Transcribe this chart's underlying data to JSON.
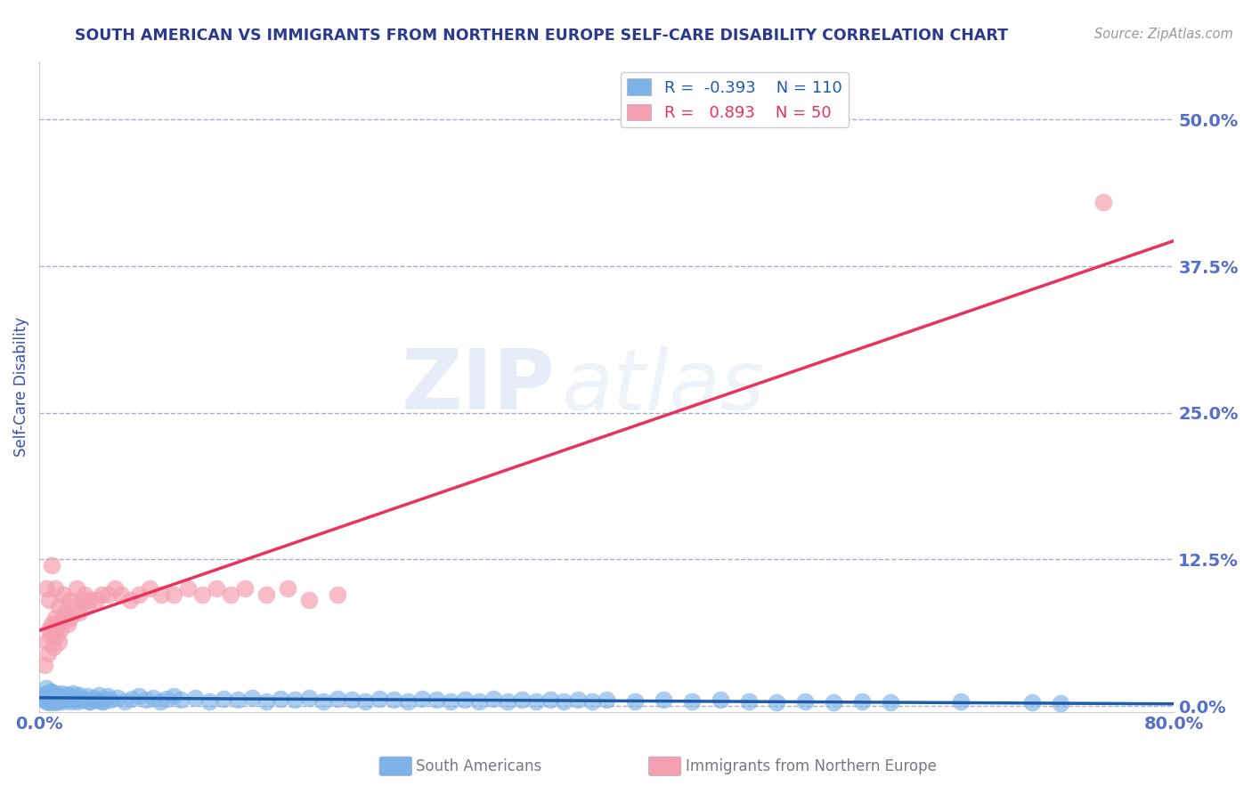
{
  "title": "SOUTH AMERICAN VS IMMIGRANTS FROM NORTHERN EUROPE SELF-CARE DISABILITY CORRELATION CHART",
  "source": "Source: ZipAtlas.com",
  "ylabel": "Self-Care Disability",
  "xlim": [
    0.0,
    0.8
  ],
  "ylim": [
    -0.005,
    0.55
  ],
  "yticks": [
    0.0,
    0.125,
    0.25,
    0.375,
    0.5
  ],
  "blue_R": -0.393,
  "blue_N": 110,
  "pink_R": 0.893,
  "pink_N": 50,
  "blue_color": "#7EB3E8",
  "pink_color": "#F4A0B0",
  "blue_line_color": "#1E5BA8",
  "pink_line_color": "#E8345A",
  "background_color": "#FFFFFF",
  "grid_color": "#AAAACC",
  "title_color": "#2B3A8C",
  "axis_label_color": "#3A4FAA",
  "tick_color": "#5570C8",
  "watermark_zip": "ZIP",
  "watermark_atlas": "atlas",
  "legend_label_blue": "South Americans",
  "legend_label_pink": "Immigrants from Northern Europe",
  "blue_x": [
    0.003,
    0.004,
    0.005,
    0.005,
    0.006,
    0.006,
    0.007,
    0.007,
    0.008,
    0.008,
    0.009,
    0.009,
    0.01,
    0.01,
    0.011,
    0.011,
    0.012,
    0.012,
    0.013,
    0.013,
    0.014,
    0.015,
    0.015,
    0.016,
    0.017,
    0.018,
    0.019,
    0.02,
    0.021,
    0.022,
    0.023,
    0.024,
    0.025,
    0.026,
    0.027,
    0.028,
    0.03,
    0.032,
    0.034,
    0.036,
    0.038,
    0.04,
    0.042,
    0.044,
    0.046,
    0.048,
    0.05,
    0.055,
    0.06,
    0.065,
    0.07,
    0.075,
    0.08,
    0.085,
    0.09,
    0.095,
    0.1,
    0.11,
    0.12,
    0.13,
    0.14,
    0.15,
    0.16,
    0.17,
    0.18,
    0.19,
    0.2,
    0.21,
    0.22,
    0.23,
    0.24,
    0.25,
    0.26,
    0.27,
    0.28,
    0.29,
    0.3,
    0.31,
    0.32,
    0.33,
    0.34,
    0.35,
    0.36,
    0.37,
    0.38,
    0.39,
    0.4,
    0.42,
    0.44,
    0.46,
    0.48,
    0.5,
    0.52,
    0.54,
    0.56,
    0.58,
    0.6,
    0.65,
    0.7,
    0.72,
    0.005,
    0.008,
    0.01,
    0.015,
    0.02,
    0.025,
    0.03,
    0.035,
    0.04,
    0.045
  ],
  "blue_y": [
    0.006,
    0.009,
    0.004,
    0.011,
    0.005,
    0.008,
    0.003,
    0.01,
    0.006,
    0.012,
    0.004,
    0.009,
    0.005,
    0.011,
    0.003,
    0.008,
    0.006,
    0.01,
    0.004,
    0.009,
    0.005,
    0.007,
    0.011,
    0.004,
    0.008,
    0.006,
    0.01,
    0.005,
    0.009,
    0.004,
    0.007,
    0.011,
    0.005,
    0.008,
    0.004,
    0.009,
    0.006,
    0.005,
    0.008,
    0.004,
    0.007,
    0.005,
    0.009,
    0.004,
    0.006,
    0.008,
    0.005,
    0.007,
    0.004,
    0.006,
    0.008,
    0.005,
    0.007,
    0.004,
    0.006,
    0.008,
    0.005,
    0.007,
    0.004,
    0.006,
    0.005,
    0.007,
    0.004,
    0.006,
    0.005,
    0.007,
    0.004,
    0.006,
    0.005,
    0.004,
    0.006,
    0.005,
    0.004,
    0.006,
    0.005,
    0.004,
    0.005,
    0.004,
    0.006,
    0.004,
    0.005,
    0.004,
    0.005,
    0.004,
    0.005,
    0.004,
    0.005,
    0.004,
    0.005,
    0.004,
    0.005,
    0.004,
    0.003,
    0.004,
    0.003,
    0.004,
    0.003,
    0.004,
    0.003,
    0.002,
    0.015,
    0.012,
    0.01,
    0.008,
    0.007,
    0.006,
    0.005,
    0.004,
    0.005,
    0.004
  ],
  "pink_x": [
    0.004,
    0.005,
    0.006,
    0.007,
    0.008,
    0.009,
    0.01,
    0.011,
    0.012,
    0.013,
    0.014,
    0.015,
    0.016,
    0.018,
    0.02,
    0.022,
    0.025,
    0.028,
    0.03,
    0.033,
    0.036,
    0.04,
    0.044,
    0.048,
    0.053,
    0.058,
    0.064,
    0.07,
    0.078,
    0.086,
    0.095,
    0.105,
    0.115,
    0.125,
    0.135,
    0.145,
    0.16,
    0.175,
    0.19,
    0.21,
    0.005,
    0.007,
    0.009,
    0.011,
    0.014,
    0.017,
    0.021,
    0.026,
    0.032,
    0.75
  ],
  "pink_y": [
    0.035,
    0.055,
    0.045,
    0.065,
    0.06,
    0.07,
    0.05,
    0.075,
    0.06,
    0.07,
    0.055,
    0.065,
    0.075,
    0.08,
    0.07,
    0.075,
    0.085,
    0.08,
    0.09,
    0.085,
    0.09,
    0.09,
    0.095,
    0.095,
    0.1,
    0.095,
    0.09,
    0.095,
    0.1,
    0.095,
    0.095,
    0.1,
    0.095,
    0.1,
    0.095,
    0.1,
    0.095,
    0.1,
    0.09,
    0.095,
    0.1,
    0.09,
    0.12,
    0.1,
    0.085,
    0.095,
    0.09,
    0.1,
    0.095,
    0.43
  ]
}
